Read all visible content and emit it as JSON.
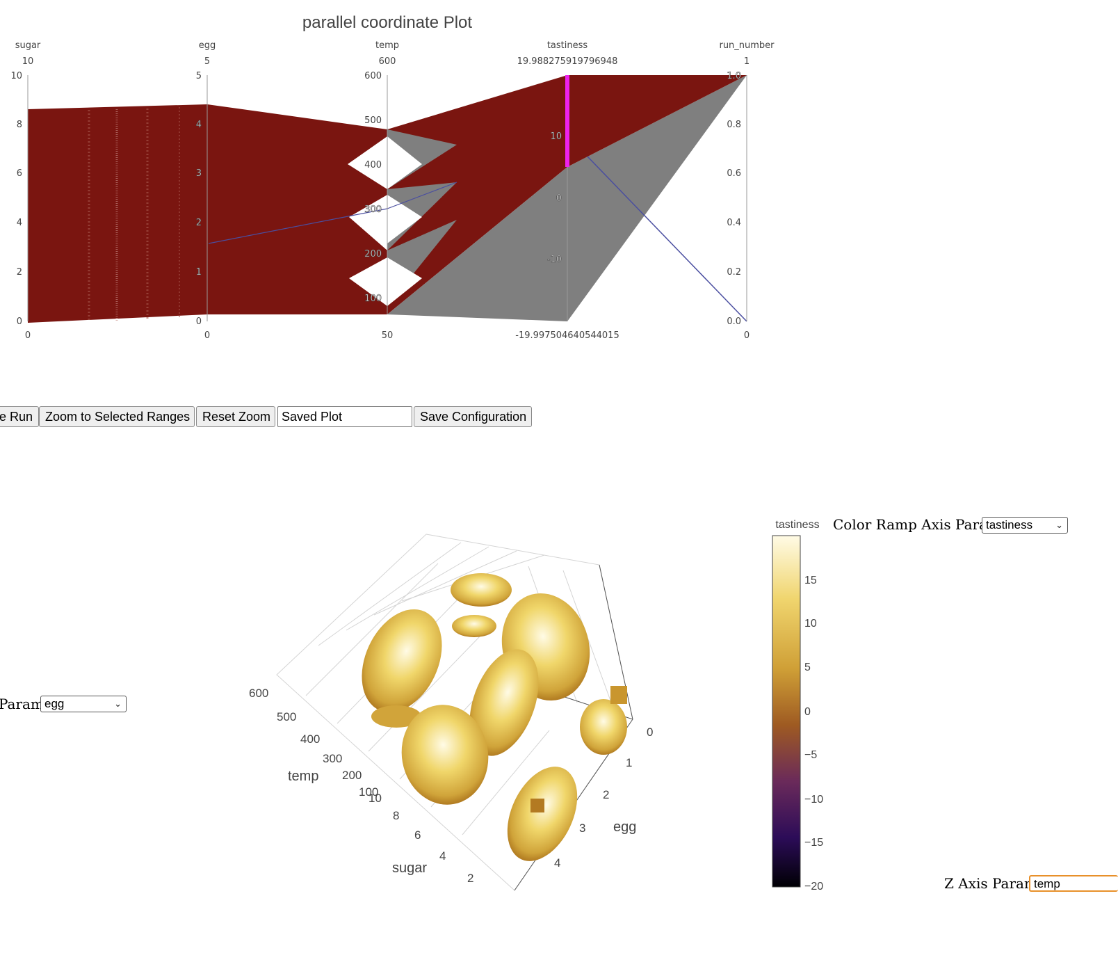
{
  "title": "parallel coordinate Plot",
  "chart_data": {
    "type": "parallel_coordinates",
    "axes": [
      {
        "label": "sugar",
        "range_top": "10",
        "range_bottom": "0",
        "ticks": [
          "0",
          "2",
          "4",
          "6",
          "8",
          "10"
        ]
      },
      {
        "label": "egg",
        "range_top": "5",
        "range_bottom": "0",
        "ticks": [
          "0",
          "1",
          "2",
          "3",
          "4",
          "5"
        ]
      },
      {
        "label": "temp",
        "range_top": "600",
        "range_bottom": "50",
        "ticks": [
          "100",
          "200",
          "300",
          "400",
          "500",
          "600"
        ]
      },
      {
        "label": "tastiness",
        "range_top": "19.988275919796948",
        "range_bottom": "-19.997504640544015",
        "ticks": [
          "-10",
          "0",
          "10"
        ],
        "selected_range": [
          0,
          20
        ]
      },
      {
        "label": "run_number",
        "range_top": "1",
        "range_bottom": "0",
        "ticks": [
          "0.0",
          "0.2",
          "0.4",
          "0.6",
          "0.8",
          "1.0"
        ]
      }
    ],
    "line_color_selected": "#7a1510",
    "line_color_unselected": "#7f7f7f",
    "highlight_line_color": "#4a4ea0",
    "brush_color": "#ee22ee"
  },
  "buttons": {
    "remove_run": "e Run",
    "zoom": "Zoom to Selected Ranges",
    "reset": "Reset Zoom",
    "save": "Save Configuration"
  },
  "save_input_value": "Saved Plot",
  "axis_param_label": "Param",
  "axis_param_value": "egg",
  "color_ramp_label": "Color Ramp Axis Param",
  "color_ramp_value": "tastiness",
  "z_axis_label": "Z Axis Param",
  "z_axis_value": "temp",
  "scene": {
    "temp_title": "temp",
    "temp_ticks": [
      "100",
      "200",
      "300",
      "400",
      "500",
      "600"
    ],
    "sugar_title": "sugar",
    "sugar_ticks": [
      "2",
      "4",
      "6",
      "8",
      "10"
    ],
    "egg_title": "egg",
    "egg_ticks": [
      "0",
      "1",
      "2",
      "3",
      "4"
    ]
  },
  "colorbar": {
    "title": "tastiness",
    "ticks": [
      "15",
      "10",
      "5",
      "0",
      "−5",
      "−10",
      "−15",
      "−20"
    ],
    "colors": [
      "#fffbe6",
      "#f2d77a",
      "#d8b33c",
      "#a56a1c",
      "#6a2a5a",
      "#3a1060",
      "#0a0010"
    ]
  }
}
